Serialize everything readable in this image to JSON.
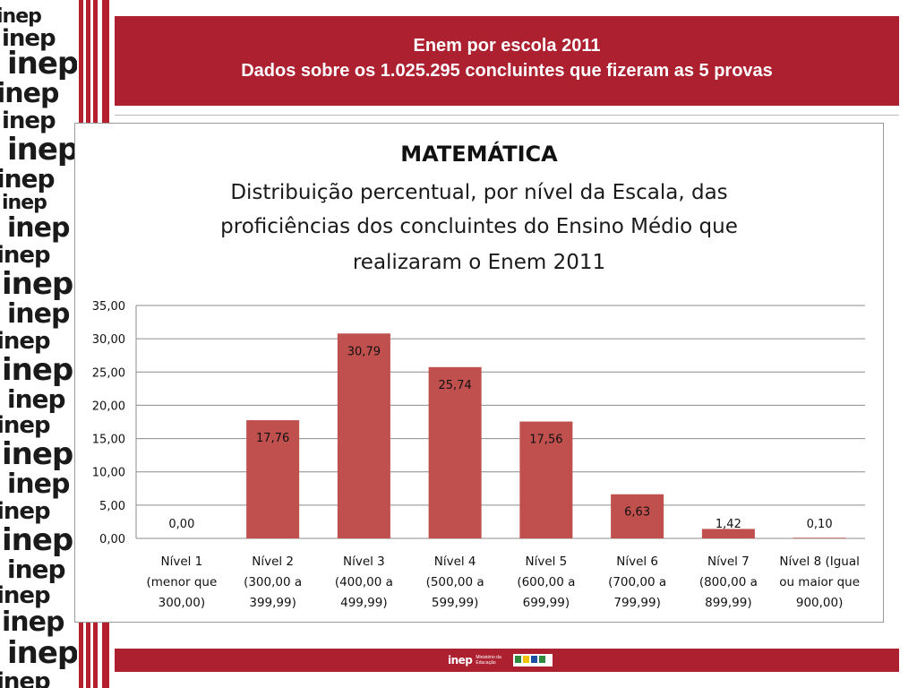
{
  "header": {
    "line1": "Enem por escola 2011",
    "line2": "Dados sobre os 1.025.295 concluintes que fizeram as 5 provas"
  },
  "side_strip": {
    "word": "inep"
  },
  "chart_data": {
    "type": "bar",
    "title": "MATEMÁTICA",
    "subtitle_lines": [
      "Distribuição percentual, por nível da Escala, das",
      "proficiências dos concluintes do Ensino Médio que",
      "realizaram o Enem 2011"
    ],
    "categories": [
      [
        "Nível 1",
        "(menor que",
        "300,00)"
      ],
      [
        "Nível 2",
        "(300,00 a",
        "399,99)"
      ],
      [
        "Nível 3",
        "(400,00 a",
        "499,99)"
      ],
      [
        "Nível 4",
        "(500,00 a",
        "599,99)"
      ],
      [
        "Nível 5",
        "(600,00 a",
        "699,99)"
      ],
      [
        "Nível 6",
        "(700,00 a",
        "799,99)"
      ],
      [
        "Nível 7",
        "(800,00 a",
        "899,99)"
      ],
      [
        "Nível 8 (Igual",
        "ou maior que",
        "900,00)"
      ]
    ],
    "values": [
      0.0,
      17.76,
      30.79,
      25.74,
      17.56,
      6.63,
      1.42,
      0.1
    ],
    "value_labels": [
      "0,00",
      "17,76",
      "30,79",
      "25,74",
      "17,56",
      "6,63",
      "1,42",
      "0,10"
    ],
    "ylim": [
      0,
      35
    ],
    "yticks": [
      "0,00",
      "5,00",
      "10,00",
      "15,00",
      "20,00",
      "25,00",
      "30,00",
      "35,00"
    ],
    "grid": true,
    "legend": "none",
    "bar_color": "#c0504d"
  },
  "footer": {
    "inep": "inep",
    "ministry": "Ministério da Educação"
  },
  "colors": {
    "banner": "#ad2030",
    "stripe": "#b5202e",
    "bar": "#c0504d"
  }
}
